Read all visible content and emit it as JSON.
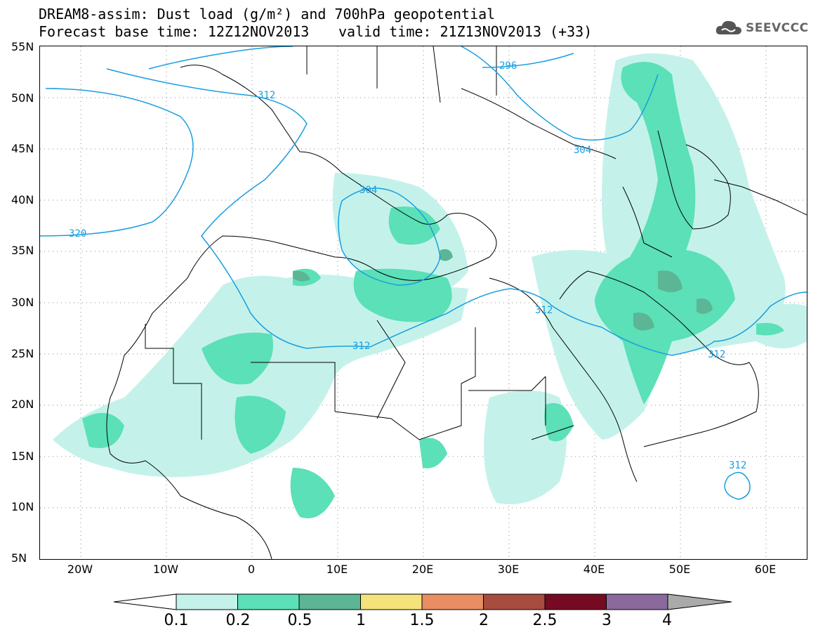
{
  "header": {
    "title_line1": "DREAM8-assim: Dust load (g/m²) and 700hPa geopotential",
    "base_time": "Forecast base time: 12Z12NOV2013",
    "valid_time": "valid time: 21Z13NOV2013 (+33)"
  },
  "logo": {
    "text": "SEEVCCC",
    "icon": "cloud-icon"
  },
  "axes": {
    "lat_labels": [
      "55N",
      "50N",
      "45N",
      "40N",
      "35N",
      "30N",
      "25N",
      "20N",
      "15N",
      "10N",
      "5N"
    ],
    "lon_labels": [
      "20W",
      "10W",
      "0",
      "10E",
      "20E",
      "30E",
      "40E",
      "50E",
      "60E"
    ]
  },
  "contours": {
    "color": "#1a9ee0",
    "labels": [
      "312",
      "296",
      "304",
      "320",
      "304",
      "312",
      "312",
      "312",
      "312"
    ]
  },
  "colorbar": {
    "thresholds": [
      "0.1",
      "0.2",
      "0.5",
      "1",
      "1.5",
      "2",
      "2.5",
      "3",
      "4"
    ],
    "colors": [
      "#ffffff",
      "#c4f2ea",
      "#5be0b7",
      "#5cb594",
      "#f4e37a",
      "#e88e62",
      "#a84c40",
      "#760a23",
      "#8a6a9c",
      "#aaaaaa"
    ]
  }
}
